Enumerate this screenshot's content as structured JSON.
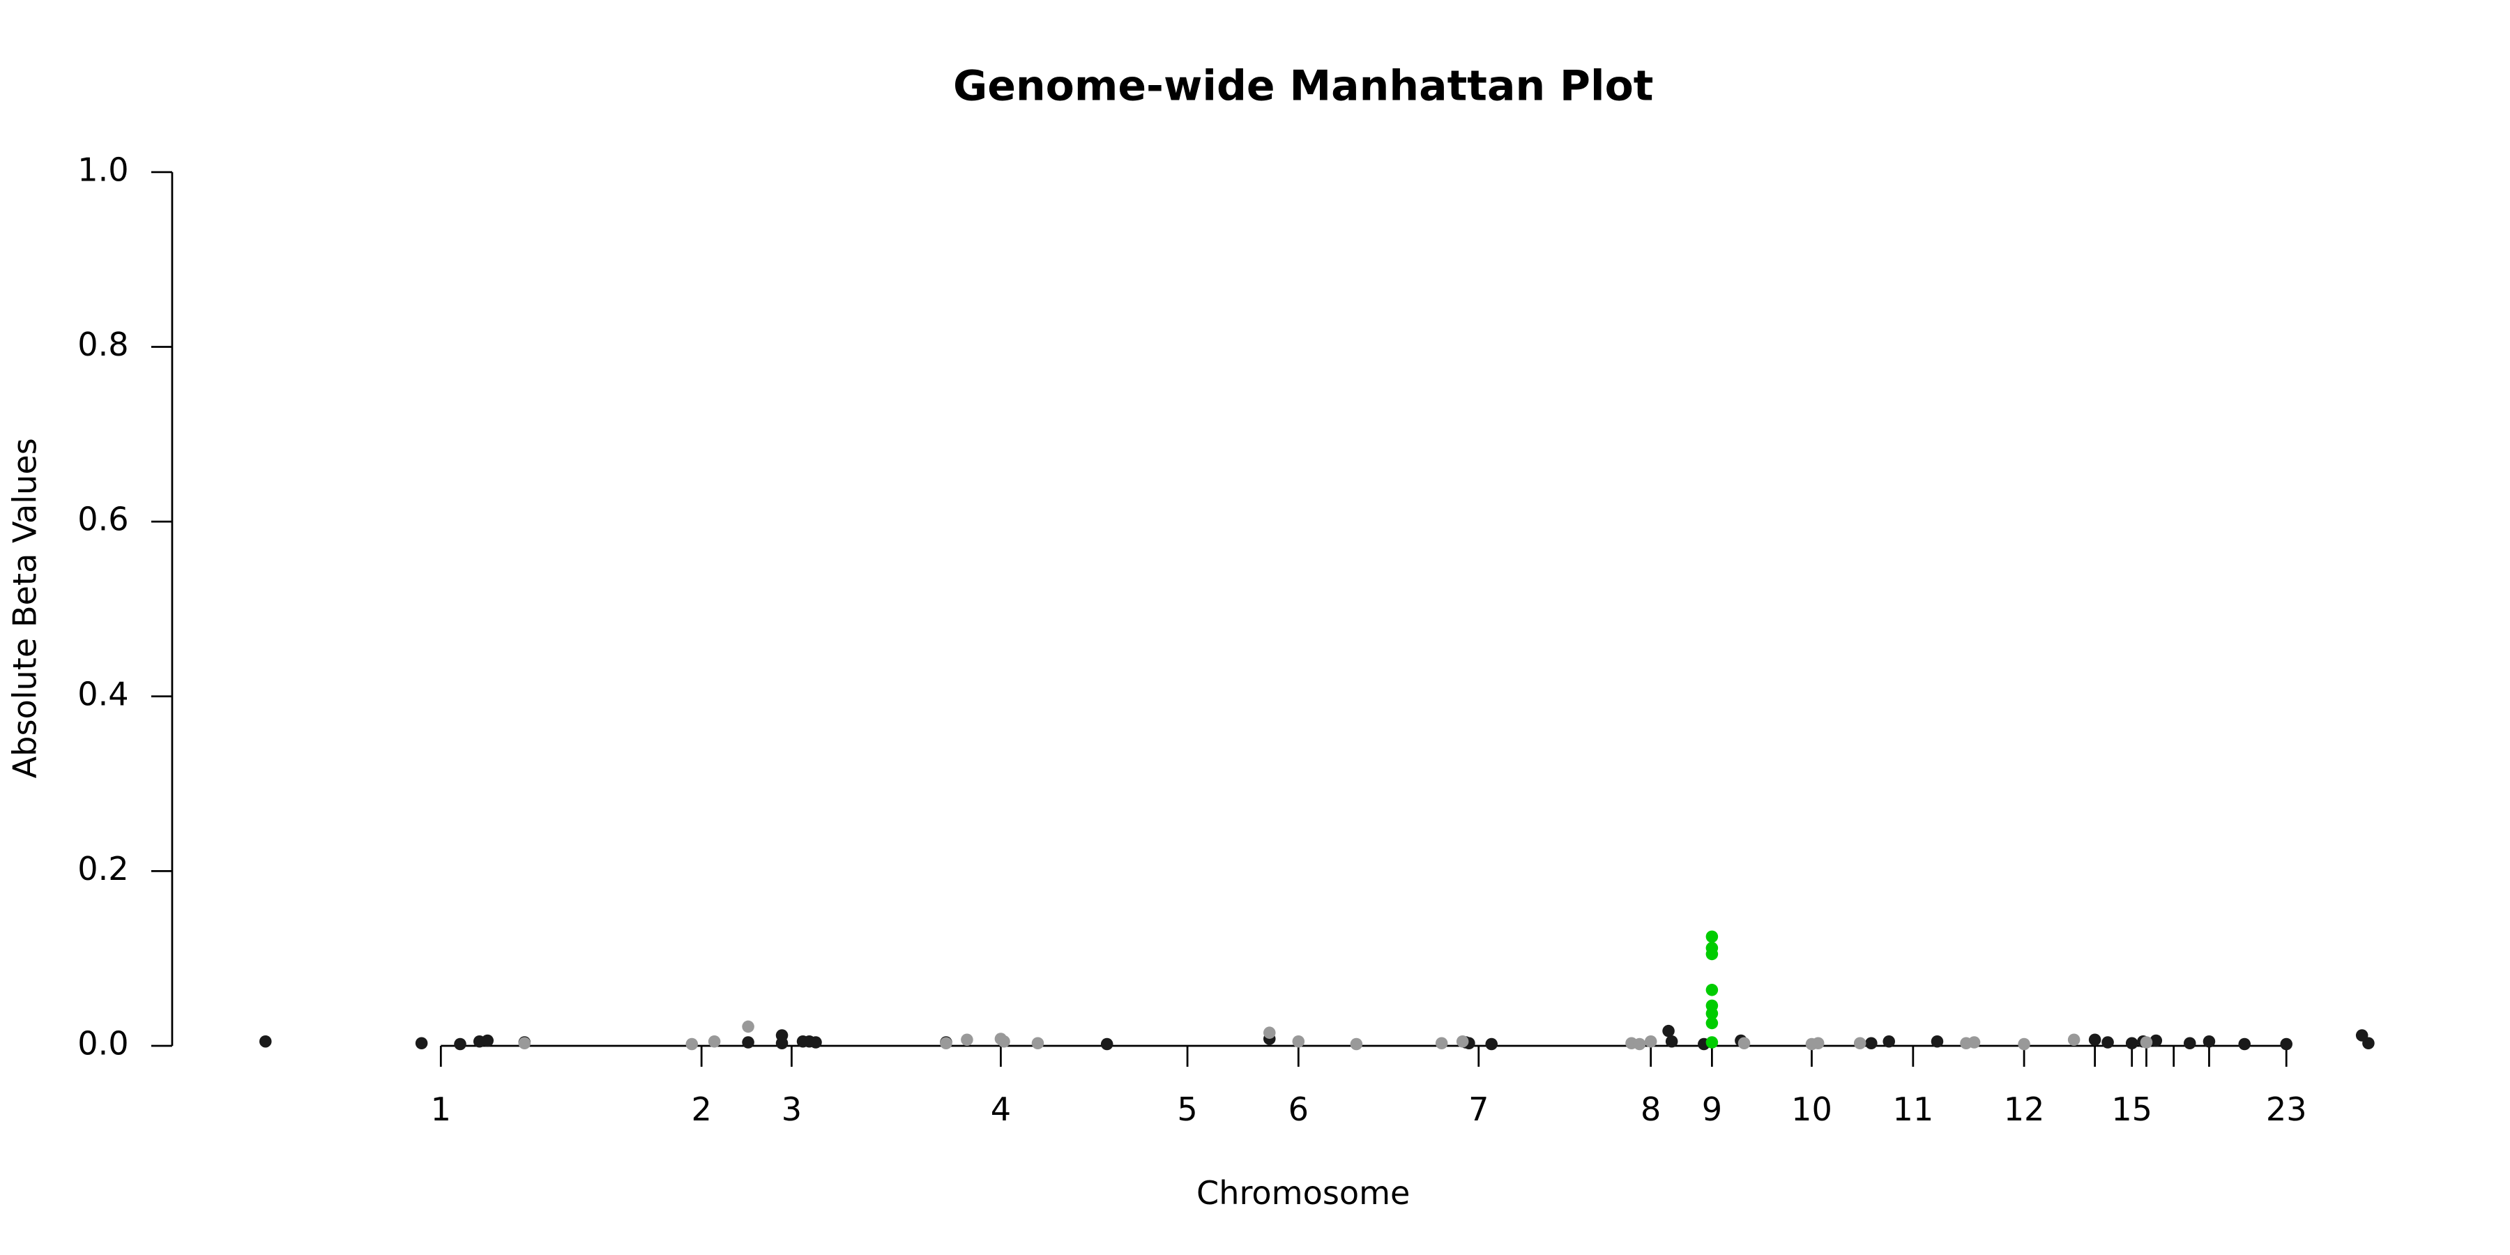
{
  "chart_data": {
    "type": "scatter",
    "title": "Genome-wide Manhattan Plot",
    "xlabel": "Chromosome",
    "ylabel": "Absolute Beta Values",
    "xlim": [
      107,
      1530
    ],
    "ylim": [
      0,
      1
    ],
    "yticks": [
      {
        "value": 0,
        "label": "0.0"
      },
      0.2,
      0.4,
      0.6,
      0.8,
      {
        "value": 1,
        "label": "1.0"
      }
    ],
    "xticks": [
      {
        "value": 274,
        "label": "1"
      },
      {
        "value": 436,
        "label": "2"
      },
      {
        "value": 492,
        "label": "3"
      },
      {
        "value": 622,
        "label": "4"
      },
      {
        "value": 738,
        "label": "5"
      },
      {
        "value": 807,
        "label": "6"
      },
      {
        "value": 919,
        "label": "7"
      },
      {
        "value": 1026,
        "label": "8"
      },
      {
        "value": 1064,
        "label": "9"
      },
      {
        "value": 1126,
        "label": "10"
      },
      {
        "value": 1189,
        "label": "11"
      },
      {
        "value": 1258,
        "label": "12"
      },
      {
        "value": 1302,
        "label": null
      },
      {
        "value": 1325,
        "label": "15"
      },
      {
        "value": 1334,
        "label": null
      },
      {
        "value": 1351,
        "label": null
      },
      {
        "value": 1373,
        "label": null
      },
      {
        "value": 1421,
        "label": "23"
      }
    ],
    "series": [
      {
        "color": "#1a1a1a",
        "x": [
          165,
          262,
          286,
          298,
          303,
          326,
          465,
          486,
          486,
          499,
          503,
          507,
          588,
          688,
          789,
          911,
          913,
          927,
          1037,
          1039,
          1059,
          1082,
          1163,
          1174,
          1204,
          1302,
          1310,
          1325,
          1332,
          1340,
          1361,
          1373,
          1395,
          1421,
          1468,
          1472
        ],
        "values": [
          0.005,
          0.003,
          0.002,
          0.005,
          0.006,
          0.004,
          0.004,
          0.012,
          0.003,
          0.005,
          0.005,
          0.004,
          0.004,
          0.002,
          0.008,
          0.004,
          0.003,
          0.002,
          0.017,
          0.005,
          0.002,
          0.006,
          0.003,
          0.005,
          0.005,
          0.007,
          0.004,
          0.003,
          0.005,
          0.006,
          0.003,
          0.005,
          0.002,
          0.002,
          0.012,
          0.003
        ]
      },
      {
        "color": "#999999",
        "x": [
          326,
          430,
          444,
          465,
          588,
          601,
          622,
          624,
          645,
          789,
          807,
          843,
          896,
          909,
          1014,
          1019,
          1026,
          1084,
          1126,
          1130,
          1156,
          1222,
          1227,
          1258,
          1289,
          1334
        ],
        "values": [
          0.003,
          0.002,
          0.005,
          0.022,
          0.003,
          0.007,
          0.008,
          0.005,
          0.003,
          0.015,
          0.005,
          0.002,
          0.003,
          0.005,
          0.003,
          0.002,
          0.005,
          0.003,
          0.002,
          0.003,
          0.003,
          0.003,
          0.004,
          0.002,
          0.007,
          0.004
        ]
      },
      {
        "color": "#00cc00",
        "x": [
          1064,
          1064,
          1064,
          1064,
          1064,
          1064,
          1064,
          1064
        ],
        "values": [
          0.125,
          0.112,
          0.105,
          0.064,
          0.046,
          0.037,
          0.026,
          0.004
        ]
      }
    ]
  }
}
